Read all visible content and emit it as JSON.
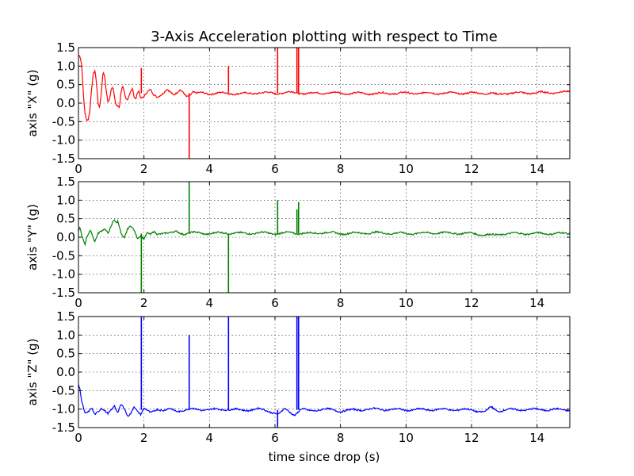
{
  "chart_data": {
    "type": "line",
    "title": "3-Axis Acceleration plotting with respect to Time",
    "xlabel": "time since drop (s)",
    "xlim": [
      0,
      15
    ],
    "xticks": [
      0,
      2,
      4,
      6,
      8,
      10,
      12,
      14
    ],
    "ylim": [
      -1.5,
      1.5
    ],
    "yticks": [
      -1.5,
      -1.0,
      -0.5,
      0.0,
      0.5,
      1.0,
      1.5
    ],
    "grid": true,
    "panels": [
      {
        "ylabel": "axis \"X\" (g)",
        "color": "#ff0000",
        "base": 0.27,
        "points": [
          [
            0,
            1.3
          ],
          [
            0.05,
            1.25
          ],
          [
            0.1,
            1.0
          ],
          [
            0.15,
            0.2
          ],
          [
            0.2,
            -0.3
          ],
          [
            0.25,
            -0.48
          ],
          [
            0.3,
            -0.45
          ],
          [
            0.35,
            -0.2
          ],
          [
            0.4,
            0.4
          ],
          [
            0.45,
            0.8
          ],
          [
            0.5,
            0.9
          ],
          [
            0.55,
            0.6
          ],
          [
            0.6,
            0.0
          ],
          [
            0.65,
            -0.1
          ],
          [
            0.7,
            0.3
          ],
          [
            0.75,
            0.85
          ],
          [
            0.8,
            0.7
          ],
          [
            0.85,
            0.3
          ],
          [
            0.9,
            0.0
          ],
          [
            0.95,
            0.1
          ],
          [
            1.0,
            0.35
          ],
          [
            1.05,
            0.45
          ],
          [
            1.1,
            0.2
          ],
          [
            1.15,
            -0.05
          ],
          [
            1.2,
            -0.05
          ],
          [
            1.25,
            -0.1
          ],
          [
            1.3,
            0.3
          ],
          [
            1.35,
            0.5
          ],
          [
            1.4,
            0.3
          ],
          [
            1.45,
            0.1
          ],
          [
            1.5,
            0.05
          ],
          [
            1.6,
            0.3
          ],
          [
            1.65,
            0.4
          ],
          [
            1.7,
            0.15
          ],
          [
            1.75,
            0.1
          ],
          [
            1.8,
            0.3
          ],
          [
            1.85,
            0.35
          ],
          [
            1.9,
            0.15
          ],
          [
            2.0,
            0.2
          ],
          [
            2.1,
            0.3
          ],
          [
            2.2,
            0.35
          ],
          [
            2.3,
            0.2
          ],
          [
            2.4,
            0.15
          ],
          [
            2.5,
            0.22
          ],
          [
            2.6,
            0.3
          ],
          [
            2.7,
            0.4
          ],
          [
            2.8,
            0.3
          ],
          [
            2.9,
            0.2
          ],
          [
            3.0,
            0.25
          ],
          [
            3.1,
            0.35
          ],
          [
            3.2,
            0.3
          ],
          [
            3.3,
            0.2
          ],
          [
            3.4,
            0.22
          ],
          [
            3.5,
            0.3
          ],
          [
            3.6,
            0.25
          ],
          [
            3.8,
            0.28
          ],
          [
            4.0,
            0.26
          ],
          [
            4.5,
            0.27
          ],
          [
            5.0,
            0.25
          ],
          [
            5.5,
            0.28
          ],
          [
            6.0,
            0.27
          ],
          [
            6.5,
            0.29
          ],
          [
            7.0,
            0.26
          ],
          [
            7.5,
            0.28
          ],
          [
            8.0,
            0.27
          ],
          [
            9.0,
            0.26
          ],
          [
            10.0,
            0.27
          ],
          [
            11.0,
            0.27
          ],
          [
            12.0,
            0.27
          ],
          [
            12.6,
            0.27
          ],
          [
            12.8,
            0.22
          ],
          [
            13.0,
            0.27
          ],
          [
            14.0,
            0.28
          ],
          [
            15.0,
            0.3
          ]
        ],
        "spikes": [
          [
            1.92,
            0.95
          ],
          [
            3.38,
            -1.5
          ],
          [
            4.58,
            1.0
          ],
          [
            6.08,
            1.5
          ],
          [
            6.67,
            1.5
          ],
          [
            6.72,
            1.5
          ]
        ]
      },
      {
        "ylabel": "axis \"Y\" (g)",
        "color": "#008000",
        "base": 0.1,
        "points": [
          [
            0,
            0.15
          ],
          [
            0.05,
            0.25
          ],
          [
            0.1,
            0.0
          ],
          [
            0.15,
            -0.1
          ],
          [
            0.2,
            -0.2
          ],
          [
            0.25,
            0.0
          ],
          [
            0.3,
            0.1
          ],
          [
            0.35,
            0.2
          ],
          [
            0.4,
            0.15
          ],
          [
            0.45,
            0.0
          ],
          [
            0.5,
            -0.1
          ],
          [
            0.55,
            0.0
          ],
          [
            0.6,
            0.1
          ],
          [
            0.7,
            0.15
          ],
          [
            0.8,
            0.2
          ],
          [
            0.9,
            0.1
          ],
          [
            1.0,
            0.3
          ],
          [
            1.05,
            0.45
          ],
          [
            1.1,
            0.5
          ],
          [
            1.15,
            0.4
          ],
          [
            1.2,
            0.45
          ],
          [
            1.25,
            0.3
          ],
          [
            1.3,
            0.1
          ],
          [
            1.35,
            0.0
          ],
          [
            1.4,
            -0.05
          ],
          [
            1.5,
            0.2
          ],
          [
            1.6,
            0.3
          ],
          [
            1.7,
            0.2
          ],
          [
            1.8,
            0.0
          ],
          [
            1.9,
            0.05
          ],
          [
            2.0,
            -0.05
          ],
          [
            2.1,
            0.1
          ],
          [
            2.2,
            0.05
          ],
          [
            2.3,
            0.15
          ],
          [
            2.4,
            0.1
          ],
          [
            2.6,
            0.12
          ],
          [
            2.8,
            0.1
          ],
          [
            3.0,
            0.15
          ],
          [
            3.2,
            0.1
          ],
          [
            3.5,
            0.12
          ],
          [
            4.0,
            0.1
          ],
          [
            4.5,
            0.12
          ],
          [
            5.0,
            0.1
          ],
          [
            5.5,
            0.12
          ],
          [
            6.0,
            0.1
          ],
          [
            6.5,
            0.12
          ],
          [
            7.0,
            0.1
          ],
          [
            7.5,
            0.13
          ],
          [
            8.0,
            0.1
          ],
          [
            9.0,
            0.12
          ],
          [
            10.0,
            0.1
          ],
          [
            11.0,
            0.12
          ],
          [
            12.0,
            0.1
          ],
          [
            12.7,
            0.05
          ],
          [
            13.0,
            0.1
          ],
          [
            14.0,
            0.1
          ],
          [
            15.0,
            0.1
          ]
        ],
        "spikes": [
          [
            1.92,
            -1.5
          ],
          [
            3.38,
            1.5
          ],
          [
            4.58,
            -1.5
          ],
          [
            6.08,
            1.0
          ],
          [
            6.67,
            0.75
          ],
          [
            6.72,
            0.95
          ]
        ]
      },
      {
        "ylabel": "axis \"Z\" (g)",
        "color": "#0000ff",
        "base": -1.02,
        "points": [
          [
            0,
            -0.35
          ],
          [
            0.05,
            -0.5
          ],
          [
            0.1,
            -0.8
          ],
          [
            0.15,
            -0.95
          ],
          [
            0.2,
            -1.1
          ],
          [
            0.3,
            -1.05
          ],
          [
            0.4,
            -0.95
          ],
          [
            0.5,
            -1.15
          ],
          [
            0.6,
            -1.1
          ],
          [
            0.7,
            -1.0
          ],
          [
            0.8,
            -1.05
          ],
          [
            0.9,
            -1.1
          ],
          [
            1.0,
            -1.0
          ],
          [
            1.1,
            -0.9
          ],
          [
            1.2,
            -1.1
          ],
          [
            1.3,
            -0.9
          ],
          [
            1.4,
            -1.0
          ],
          [
            1.5,
            -1.2
          ],
          [
            1.6,
            -1.1
          ],
          [
            1.7,
            -0.9
          ],
          [
            1.8,
            -1.05
          ],
          [
            1.9,
            -1.15
          ],
          [
            2.0,
            -1.0
          ],
          [
            2.1,
            -1.05
          ],
          [
            2.2,
            -1.1
          ],
          [
            2.4,
            -0.98
          ],
          [
            2.6,
            -1.05
          ],
          [
            2.8,
            -1.0
          ],
          [
            3.0,
            -1.05
          ],
          [
            3.5,
            -1.0
          ],
          [
            4.0,
            -1.02
          ],
          [
            4.5,
            -1.0
          ],
          [
            5.0,
            -1.03
          ],
          [
            5.5,
            -1.0
          ],
          [
            5.8,
            -1.05
          ],
          [
            6.0,
            -1.1
          ],
          [
            6.1,
            -1.15
          ],
          [
            6.3,
            -1.0
          ],
          [
            6.5,
            -1.1
          ],
          [
            6.6,
            -1.15
          ],
          [
            6.8,
            -1.0
          ],
          [
            7.0,
            -1.05
          ],
          [
            7.5,
            -1.0
          ],
          [
            8.0,
            -1.05
          ],
          [
            8.5,
            -1.02
          ],
          [
            9.0,
            -1.0
          ],
          [
            10.0,
            -1.02
          ],
          [
            11.0,
            -1.01
          ],
          [
            12.0,
            -1.02
          ],
          [
            12.4,
            -1.08
          ],
          [
            12.6,
            -0.95
          ],
          [
            12.8,
            -1.05
          ],
          [
            13.0,
            -1.02
          ],
          [
            14.0,
            -1.01
          ],
          [
            15.0,
            -1.02
          ]
        ],
        "spikes": [
          [
            1.92,
            1.5
          ],
          [
            3.38,
            1.0
          ],
          [
            4.58,
            1.5
          ],
          [
            6.08,
            -1.5
          ],
          [
            6.67,
            1.5
          ],
          [
            6.72,
            1.5
          ]
        ]
      }
    ]
  }
}
